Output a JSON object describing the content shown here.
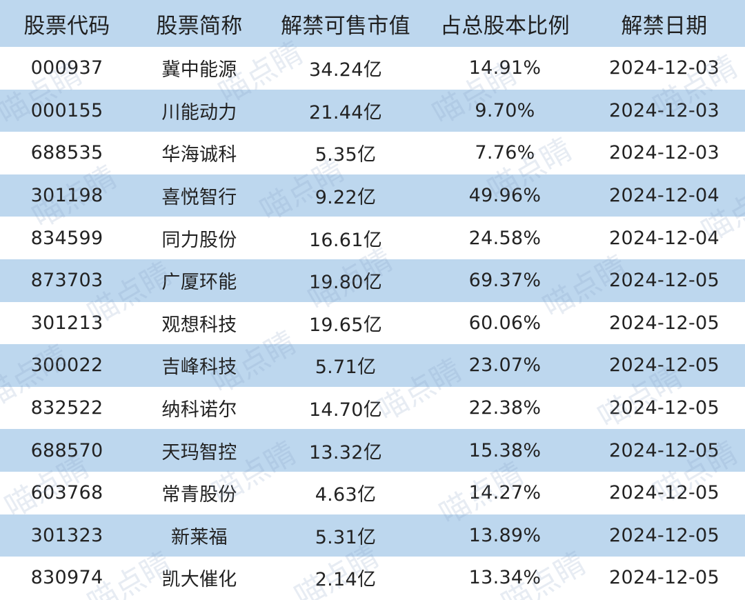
{
  "table": {
    "headers": [
      "股票代码",
      "股票简称",
      "解禁可售市值",
      "占总股本比例",
      "解禁日期"
    ],
    "rows": [
      [
        "000937",
        "冀中能源",
        "34.24亿",
        "14.91%",
        "2024-12-03"
      ],
      [
        "000155",
        "川能动力",
        "21.44亿",
        "9.70%",
        "2024-12-03"
      ],
      [
        "688535",
        "华海诚科",
        "5.35亿",
        "7.76%",
        "2024-12-03"
      ],
      [
        "301198",
        "喜悦智行",
        "9.22亿",
        "49.96%",
        "2024-12-04"
      ],
      [
        "834599",
        "同力股份",
        "16.61亿",
        "24.58%",
        "2024-12-04"
      ],
      [
        "873703",
        "广厦环能",
        "19.80亿",
        "69.37%",
        "2024-12-05"
      ],
      [
        "301213",
        "观想科技",
        "19.65亿",
        "60.06%",
        "2024-12-05"
      ],
      [
        "300022",
        "吉峰科技",
        "5.71亿",
        "23.07%",
        "2024-12-05"
      ],
      [
        "832522",
        "纳科诺尔",
        "14.70亿",
        "22.38%",
        "2024-12-05"
      ],
      [
        "688570",
        "天玛智控",
        "13.32亿",
        "15.38%",
        "2024-12-05"
      ],
      [
        "603768",
        "常青股份",
        "4.63亿",
        "14.27%",
        "2024-12-05"
      ],
      [
        "301323",
        "新莱福",
        "5.31亿",
        "13.89%",
        "2024-12-05"
      ],
      [
        "830974",
        "凯大催化",
        "2.14亿",
        "13.34%",
        "2024-12-05"
      ]
    ]
  },
  "watermark": {
    "text": "喵点睛"
  },
  "colors": {
    "header_bg": "#bdd7ee",
    "stripe_bg": "#bdd7ee",
    "row_bg": "#ffffff"
  }
}
